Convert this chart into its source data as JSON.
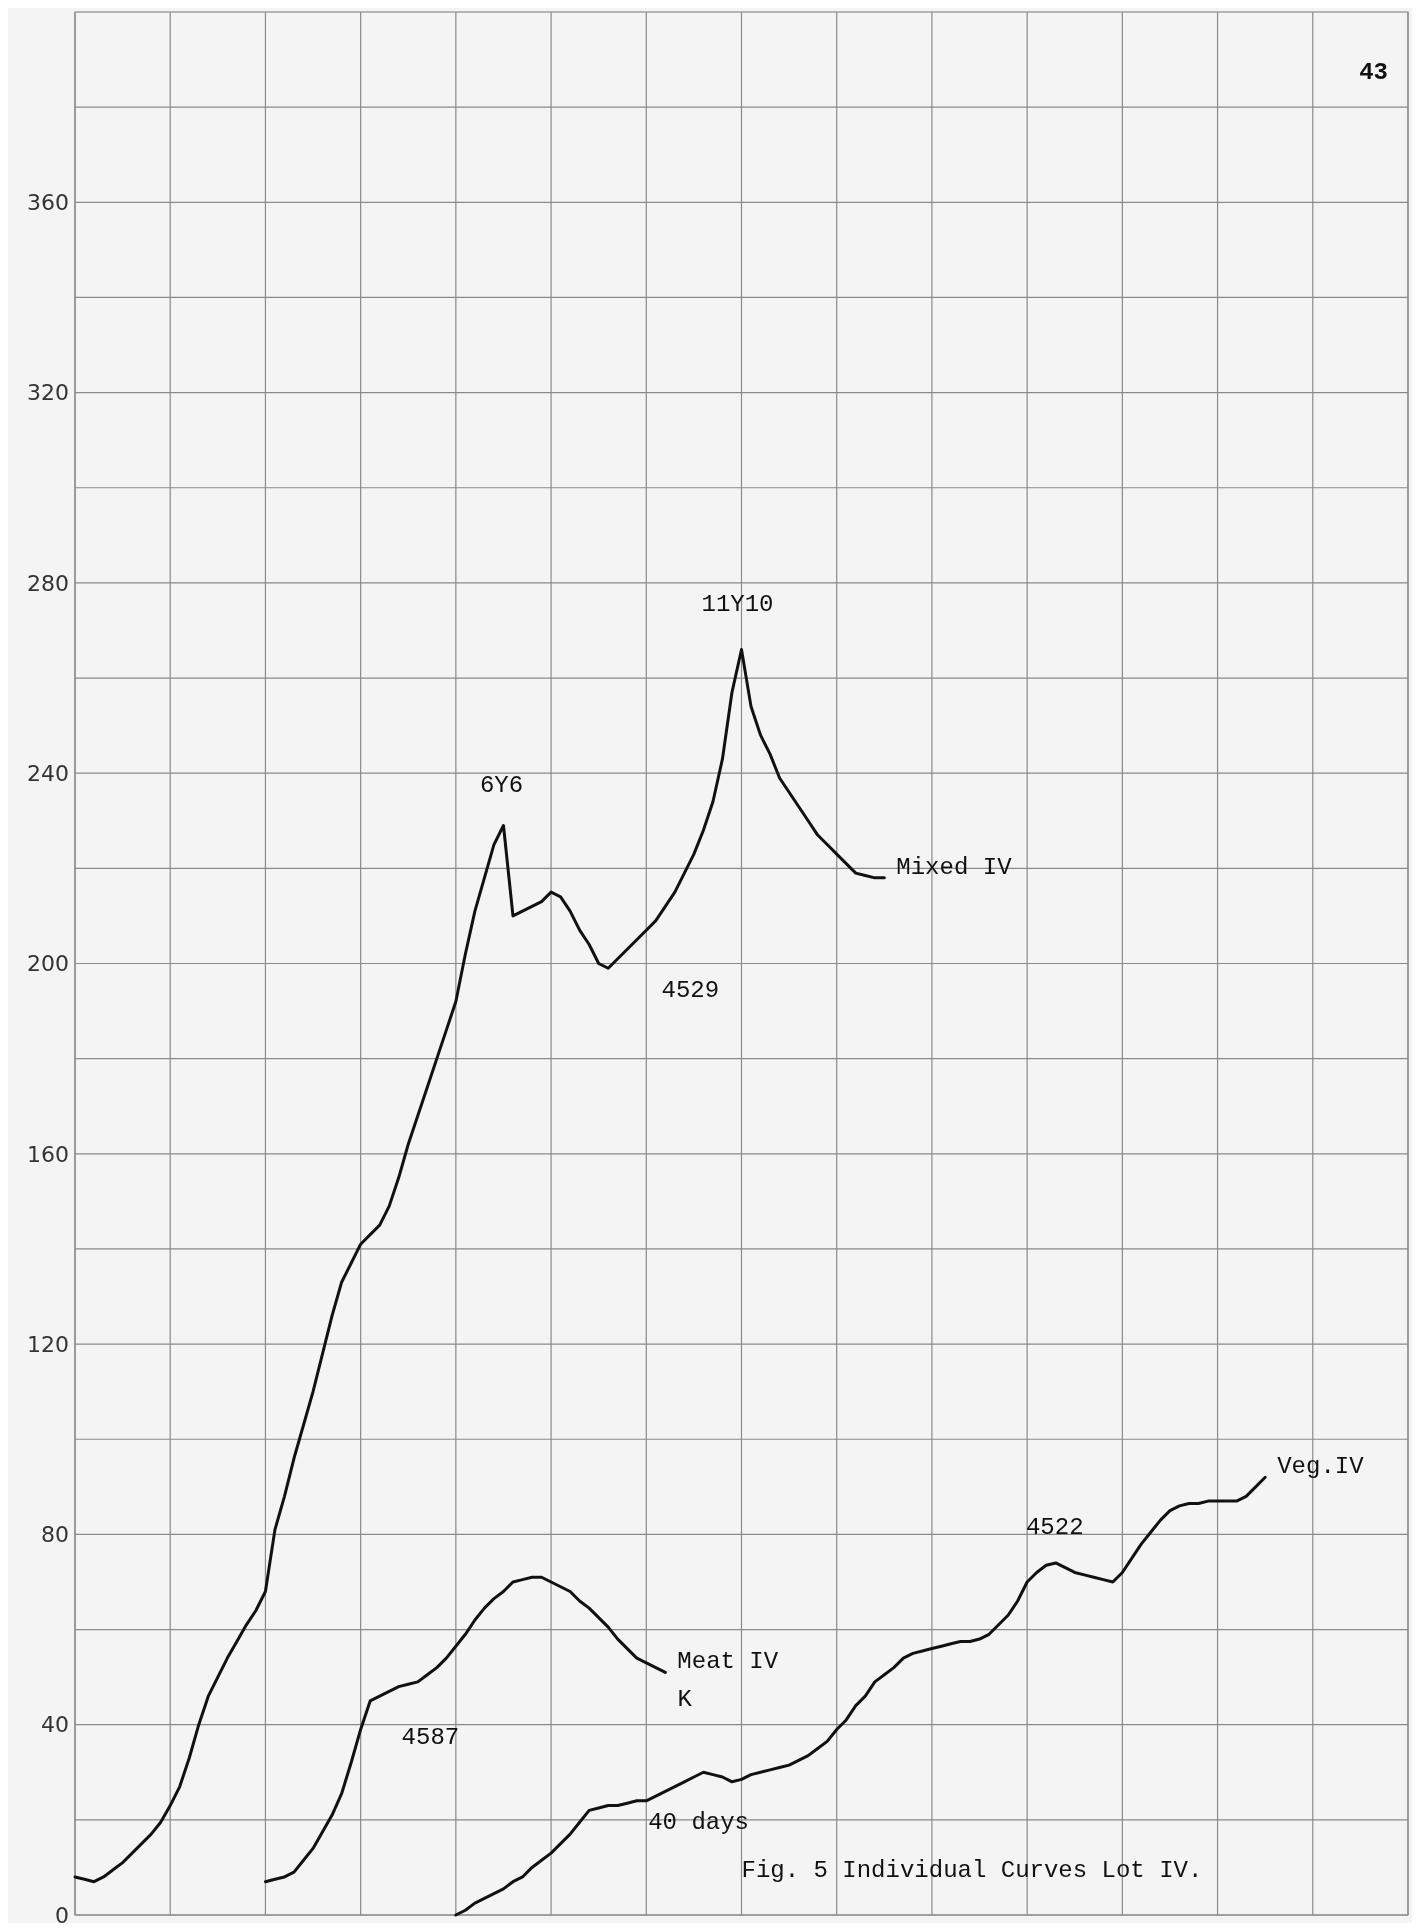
{
  "chart_data": {
    "type": "line",
    "categories": [
      null,
      null,
      null,
      null,
      null,
      null,
      null,
      null,
      null,
      null,
      null,
      null,
      null,
      null,
      null,
      null,
      null,
      null,
      null,
      null,
      null,
      null,
      null,
      null,
      null,
      null,
      null,
      null,
      null,
      null,
      null,
      null,
      null,
      null,
      null,
      null,
      null,
      null,
      null,
      null,
      null,
      null,
      null,
      null,
      null,
      null,
      null,
      null,
      null,
      null,
      null,
      null,
      null,
      null,
      null,
      null,
      null,
      null,
      null,
      null,
      null,
      null,
      null,
      null,
      null,
      null,
      null,
      null,
      null,
      null,
      null,
      null,
      null,
      null,
      null,
      null,
      null,
      null,
      null,
      null,
      null,
      null,
      null,
      null,
      null,
      null,
      null,
      null,
      null,
      null,
      null,
      null,
      null,
      null,
      null,
      null,
      null,
      null,
      null,
      null,
      null,
      null,
      null,
      null,
      null,
      null,
      null,
      null,
      null,
      null,
      null,
      null,
      null,
      null,
      null,
      null,
      null,
      null,
      null,
      null,
      null,
      null,
      null,
      null,
      null,
      null,
      null,
      null,
      null,
      null,
      null,
      null,
      null,
      null,
      null,
      null,
      null,
      null,
      null,
      null,
      null
    ],
    "ylim": [
      0,
      400
    ],
    "yticks": [
      0,
      {
        "value": 20,
        "label": null
      },
      40,
      {
        "value": 60,
        "label": null
      },
      80,
      {
        "value": 100,
        "label": null
      },
      120,
      {
        "value": 140,
        "label": null
      },
      160,
      {
        "value": 180,
        "label": null
      },
      200,
      {
        "value": 220,
        "label": null
      },
      240,
      {
        "value": 260,
        "label": null
      },
      280,
      {
        "value": 300,
        "label": null
      },
      320,
      {
        "value": 340,
        "label": null
      },
      360,
      {
        "value": 380,
        "label": null
      }
    ],
    "tick_labels": "y",
    "grid": true,
    "series": [
      {
        "name": "Mixed IV",
        "color": "#111111",
        "values": [
          8,
          7.5,
          7,
          8,
          9.5,
          11,
          13,
          15,
          17,
          19.5,
          23,
          27,
          33,
          40,
          46,
          50,
          54,
          57.5,
          61,
          64,
          68,
          81,
          88,
          96,
          103,
          110,
          118,
          126,
          133,
          137,
          141,
          143,
          145,
          149,
          155,
          162,
          168,
          174,
          180,
          186,
          192,
          202,
          211,
          218,
          225,
          229,
          210,
          211,
          212,
          213,
          215,
          214,
          211,
          207,
          204,
          200,
          199,
          201,
          203,
          205,
          207,
          209,
          212,
          215,
          219,
          223,
          228,
          234,
          243,
          257,
          266,
          254,
          248,
          244,
          239,
          236,
          233,
          230,
          227,
          225,
          223,
          221,
          219,
          218.5,
          218,
          218,
          null,
          null,
          null,
          null,
          null,
          null,
          null,
          null,
          null,
          null,
          null,
          null,
          null,
          null,
          null,
          null,
          null,
          null,
          null,
          null,
          null,
          null,
          null,
          null,
          null,
          null,
          null,
          null,
          null,
          null,
          null,
          null,
          null,
          null,
          null,
          null,
          null,
          null,
          null,
          null,
          null,
          null,
          null,
          null,
          null,
          null,
          null,
          null,
          null,
          null,
          null,
          null,
          null,
          null,
          null
        ]
      },
      {
        "name": "Meat IV",
        "color": "#111111",
        "values": [
          null,
          null,
          null,
          null,
          null,
          null,
          null,
          null,
          null,
          null,
          null,
          null,
          null,
          null,
          null,
          null,
          null,
          null,
          null,
          null,
          7,
          7.5,
          8,
          9,
          11.5,
          14,
          17.5,
          21,
          25.5,
          32,
          39,
          45,
          46,
          47,
          48,
          48.5,
          49,
          50.5,
          52,
          54,
          56.5,
          59,
          62,
          64.5,
          66.5,
          68,
          70,
          70.5,
          71,
          71,
          70,
          69,
          68,
          66,
          64.5,
          62.5,
          60.5,
          58,
          56,
          54,
          53,
          52,
          51,
          null,
          null,
          null,
          null,
          null,
          null,
          null,
          null,
          null,
          null,
          null,
          null,
          null,
          null,
          null,
          null,
          null,
          null,
          null,
          null,
          null,
          null,
          null,
          null,
          null,
          null,
          null,
          null,
          null,
          null,
          null,
          null,
          null,
          null,
          null,
          null,
          null,
          null,
          null,
          null,
          null,
          null,
          null,
          null,
          null,
          null,
          null,
          null,
          null,
          null,
          null,
          null,
          null,
          null,
          null,
          null,
          null,
          null,
          null,
          null,
          null,
          null,
          null,
          null,
          null,
          null,
          null,
          null,
          null,
          null,
          null,
          null,
          null,
          null,
          null,
          null,
          null,
          null
        ]
      },
      {
        "name": "Veg.IV",
        "color": "#111111",
        "values": [
          null,
          null,
          null,
          null,
          null,
          null,
          null,
          null,
          null,
          null,
          null,
          null,
          null,
          null,
          null,
          null,
          null,
          null,
          null,
          null,
          null,
          null,
          null,
          null,
          null,
          null,
          null,
          null,
          null,
          null,
          null,
          null,
          null,
          null,
          null,
          null,
          null,
          null,
          null,
          null,
          0,
          1,
          2.5,
          3.5,
          4.5,
          5.5,
          7,
          8,
          10,
          11.5,
          13,
          15,
          17,
          19.5,
          22,
          22.5,
          23,
          23,
          23.5,
          24,
          24,
          25,
          26,
          27,
          28,
          29,
          30,
          29.5,
          29,
          28,
          28.5,
          29.5,
          30,
          30.5,
          31,
          31.5,
          32.5,
          33.5,
          35,
          36.5,
          39,
          41,
          44,
          46,
          49,
          50.5,
          52,
          54,
          55,
          55.5,
          56,
          56.5,
          57,
          57.5,
          57.5,
          58,
          59,
          61,
          63,
          66,
          70,
          72,
          73.5,
          74,
          73,
          72,
          71.5,
          71,
          70.5,
          70,
          72,
          75,
          78,
          80.5,
          83,
          85,
          86,
          86.5,
          86.5,
          87,
          87,
          87,
          87,
          88,
          90,
          92,
          null,
          null,
          null,
          null,
          null,
          null,
          null,
          null,
          null,
          null,
          null,
          null,
          null,
          null,
          null
        ]
      }
    ],
    "annotations": [
      "6Y6",
      "11Y10",
      "4529",
      "K",
      "4587",
      "4522",
      "40 days",
      "Fig. 5 Individual Curves Lot IV.",
      "43"
    ]
  }
}
